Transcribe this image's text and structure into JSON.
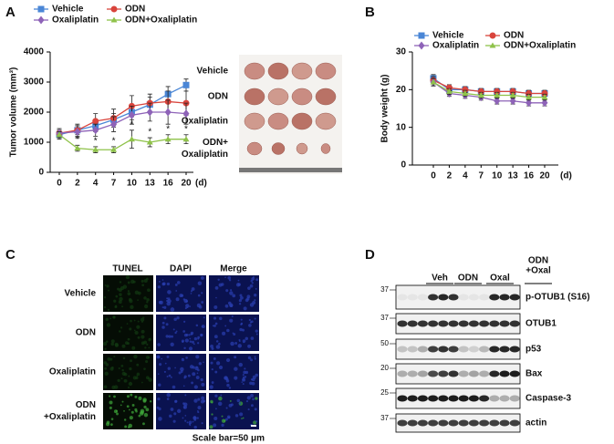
{
  "panels": {
    "a": "A",
    "b": "B",
    "c": "C",
    "d": "D"
  },
  "chart_data": [
    {
      "type": "line",
      "x_unit": "(d)",
      "y_label": "Tumor volume (mm³)",
      "categories": [
        "0",
        "2",
        "4",
        "7",
        "10",
        "13",
        "16",
        "20"
      ],
      "ylim": [
        0,
        4000
      ],
      "yticks": [
        0,
        1000,
        2000,
        3000,
        4000
      ],
      "series": [
        {
          "name": "Vehicle",
          "color": "#4a86d6",
          "marker": "square",
          "values": [
            1250,
            1400,
            1550,
            1750,
            2000,
            2250,
            2600,
            2900
          ],
          "errors": [
            150,
            150,
            200,
            200,
            250,
            250,
            250,
            200
          ]
        },
        {
          "name": "ODN",
          "color": "#d9443c",
          "marker": "circle",
          "values": [
            1300,
            1400,
            1700,
            1800,
            2200,
            2300,
            2350,
            2300
          ],
          "errors": [
            150,
            200,
            250,
            300,
            350,
            300,
            350,
            400
          ]
        },
        {
          "name": "Oxaliplatin",
          "color": "#8e63b8",
          "marker": "diamond",
          "values": [
            1300,
            1350,
            1400,
            1600,
            1900,
            2000,
            2000,
            1950
          ],
          "errors": [
            150,
            200,
            200,
            250,
            300,
            300,
            400,
            350
          ]
        },
        {
          "name": "ODN+Oxaliplatin",
          "color": "#8fc24a",
          "marker": "triangle",
          "values": [
            1250,
            800,
            750,
            750,
            1100,
            1000,
            1100,
            1100
          ],
          "errors": [
            100,
            100,
            100,
            100,
            300,
            150,
            150,
            150
          ],
          "significance": [
            null,
            "*",
            "*",
            "*",
            "*",
            "*",
            "*",
            "*"
          ]
        }
      ]
    },
    {
      "type": "line",
      "x_unit": "(d)",
      "y_label": "Body weight (g)",
      "categories": [
        "0",
        "2",
        "4",
        "7",
        "10",
        "13",
        "16",
        "20"
      ],
      "ylim": [
        0,
        30
      ],
      "yticks": [
        0,
        10,
        20,
        30
      ],
      "series": [
        {
          "name": "Vehicle",
          "color": "#4a86d6",
          "marker": "square",
          "values": [
            23,
            20,
            20,
            19.5,
            19.5,
            19.5,
            19,
            19
          ],
          "errors": [
            1,
            0.8,
            0.8,
            0.8,
            0.8,
            0.8,
            0.8,
            0.8
          ]
        },
        {
          "name": "ODN",
          "color": "#d9443c",
          "marker": "circle",
          "values": [
            22.5,
            20.5,
            20,
            19.5,
            19.5,
            19.5,
            19,
            19
          ],
          "errors": [
            1,
            0.8,
            0.8,
            0.8,
            0.8,
            0.8,
            0.8,
            0.8
          ]
        },
        {
          "name": "Oxaliplatin",
          "color": "#8e63b8",
          "marker": "diamond",
          "values": [
            22,
            19,
            18.5,
            18,
            17,
            17,
            16.5,
            16.5
          ],
          "errors": [
            1,
            0.8,
            0.8,
            0.8,
            0.8,
            0.8,
            0.8,
            0.8
          ]
        },
        {
          "name": "ODN+Oxaliplatin",
          "color": "#8fc24a",
          "marker": "triangle",
          "values": [
            22,
            19.5,
            19,
            18.5,
            18.5,
            18.5,
            18,
            18
          ],
          "errors": [
            1,
            0.8,
            0.8,
            0.8,
            0.8,
            0.8,
            0.8,
            0.8
          ]
        }
      ]
    }
  ],
  "tumor_photo": {
    "rows": [
      [
        "Vehicle"
      ],
      [
        "ODN"
      ],
      [
        "Oxaliplatin"
      ],
      [
        "ODN+",
        "Oxaliplatin"
      ]
    ]
  },
  "staining": {
    "columns": [
      "TUNEL",
      "DAPI",
      "Merge"
    ],
    "rows": [
      [
        "Vehicle"
      ],
      [
        "ODN"
      ],
      [
        "Oxaliplatin"
      ],
      [
        "ODN",
        "+Oxaliplatin"
      ]
    ],
    "scale_bar": "Scale bar=50 μm"
  },
  "western_blot": {
    "groups": [
      [
        "Veh"
      ],
      [
        "ODN"
      ],
      [
        "Oxal"
      ],
      [
        "ODN",
        "+Oxal"
      ]
    ],
    "rows": [
      {
        "label": "p-OTUB1 (S16)",
        "marker": "37"
      },
      {
        "label": "OTUB1",
        "marker": "37"
      },
      {
        "label": "p53",
        "marker": "50"
      },
      {
        "label": "Bax",
        "marker": "20"
      },
      {
        "label": "Caspase-3",
        "marker": "25"
      },
      {
        "label": "actin",
        "marker": "37"
      }
    ]
  }
}
